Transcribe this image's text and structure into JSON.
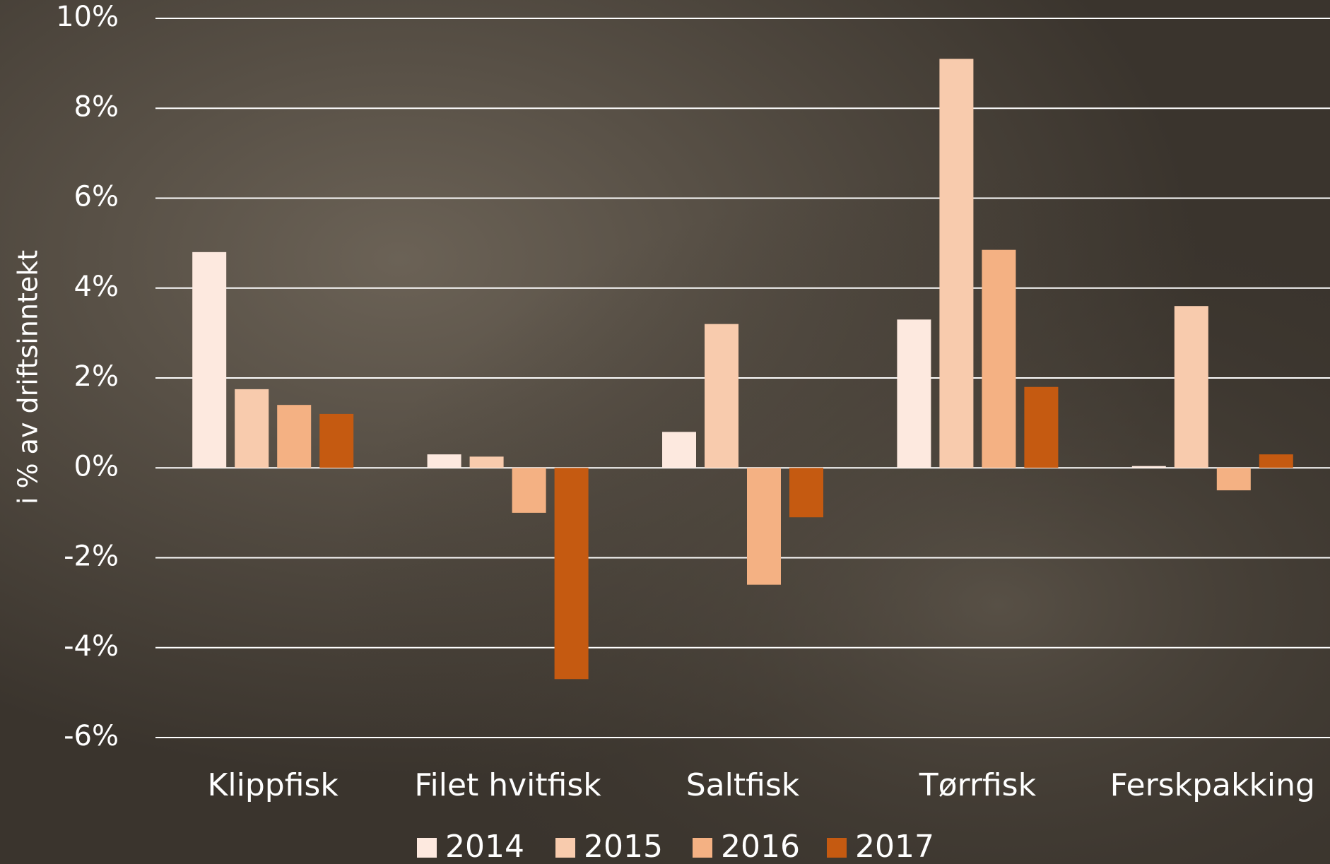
{
  "chart_data": {
    "type": "bar",
    "y_label": "i % av driftsinntekt",
    "categories": [
      "Klippfisk",
      "Filet hvitfisk",
      "Saltfisk",
      "Tørrfisk",
      "Ferskpakking"
    ],
    "series": [
      {
        "name": "2014",
        "color": "#fde9df",
        "values": [
          4.8,
          0.3,
          0.8,
          3.3,
          0.04
        ]
      },
      {
        "name": "2015",
        "color": "#f8cbad",
        "values": [
          1.75,
          0.25,
          3.2,
          9.1,
          3.6
        ]
      },
      {
        "name": "2016",
        "color": "#f4b183",
        "values": [
          1.4,
          -1.0,
          -2.6,
          4.85,
          -0.5
        ]
      },
      {
        "name": "2017",
        "color": "#c55a11",
        "values": [
          1.2,
          -4.7,
          -1.1,
          1.8,
          0.3
        ]
      }
    ],
    "ylim": [
      -6,
      10
    ],
    "yticks": [
      {
        "value": -6,
        "label": "-6%"
      },
      {
        "value": -4,
        "label": "-4%"
      },
      {
        "value": -2,
        "label": "-2%"
      },
      {
        "value": 0,
        "label": "0%"
      },
      {
        "value": 2,
        "label": "2%"
      },
      {
        "value": 4,
        "label": "4%"
      },
      {
        "value": 6,
        "label": "6%"
      },
      {
        "value": 8,
        "label": "8%"
      },
      {
        "value": 10,
        "label": "10%"
      }
    ],
    "grid": true,
    "legend": "bottom"
  }
}
